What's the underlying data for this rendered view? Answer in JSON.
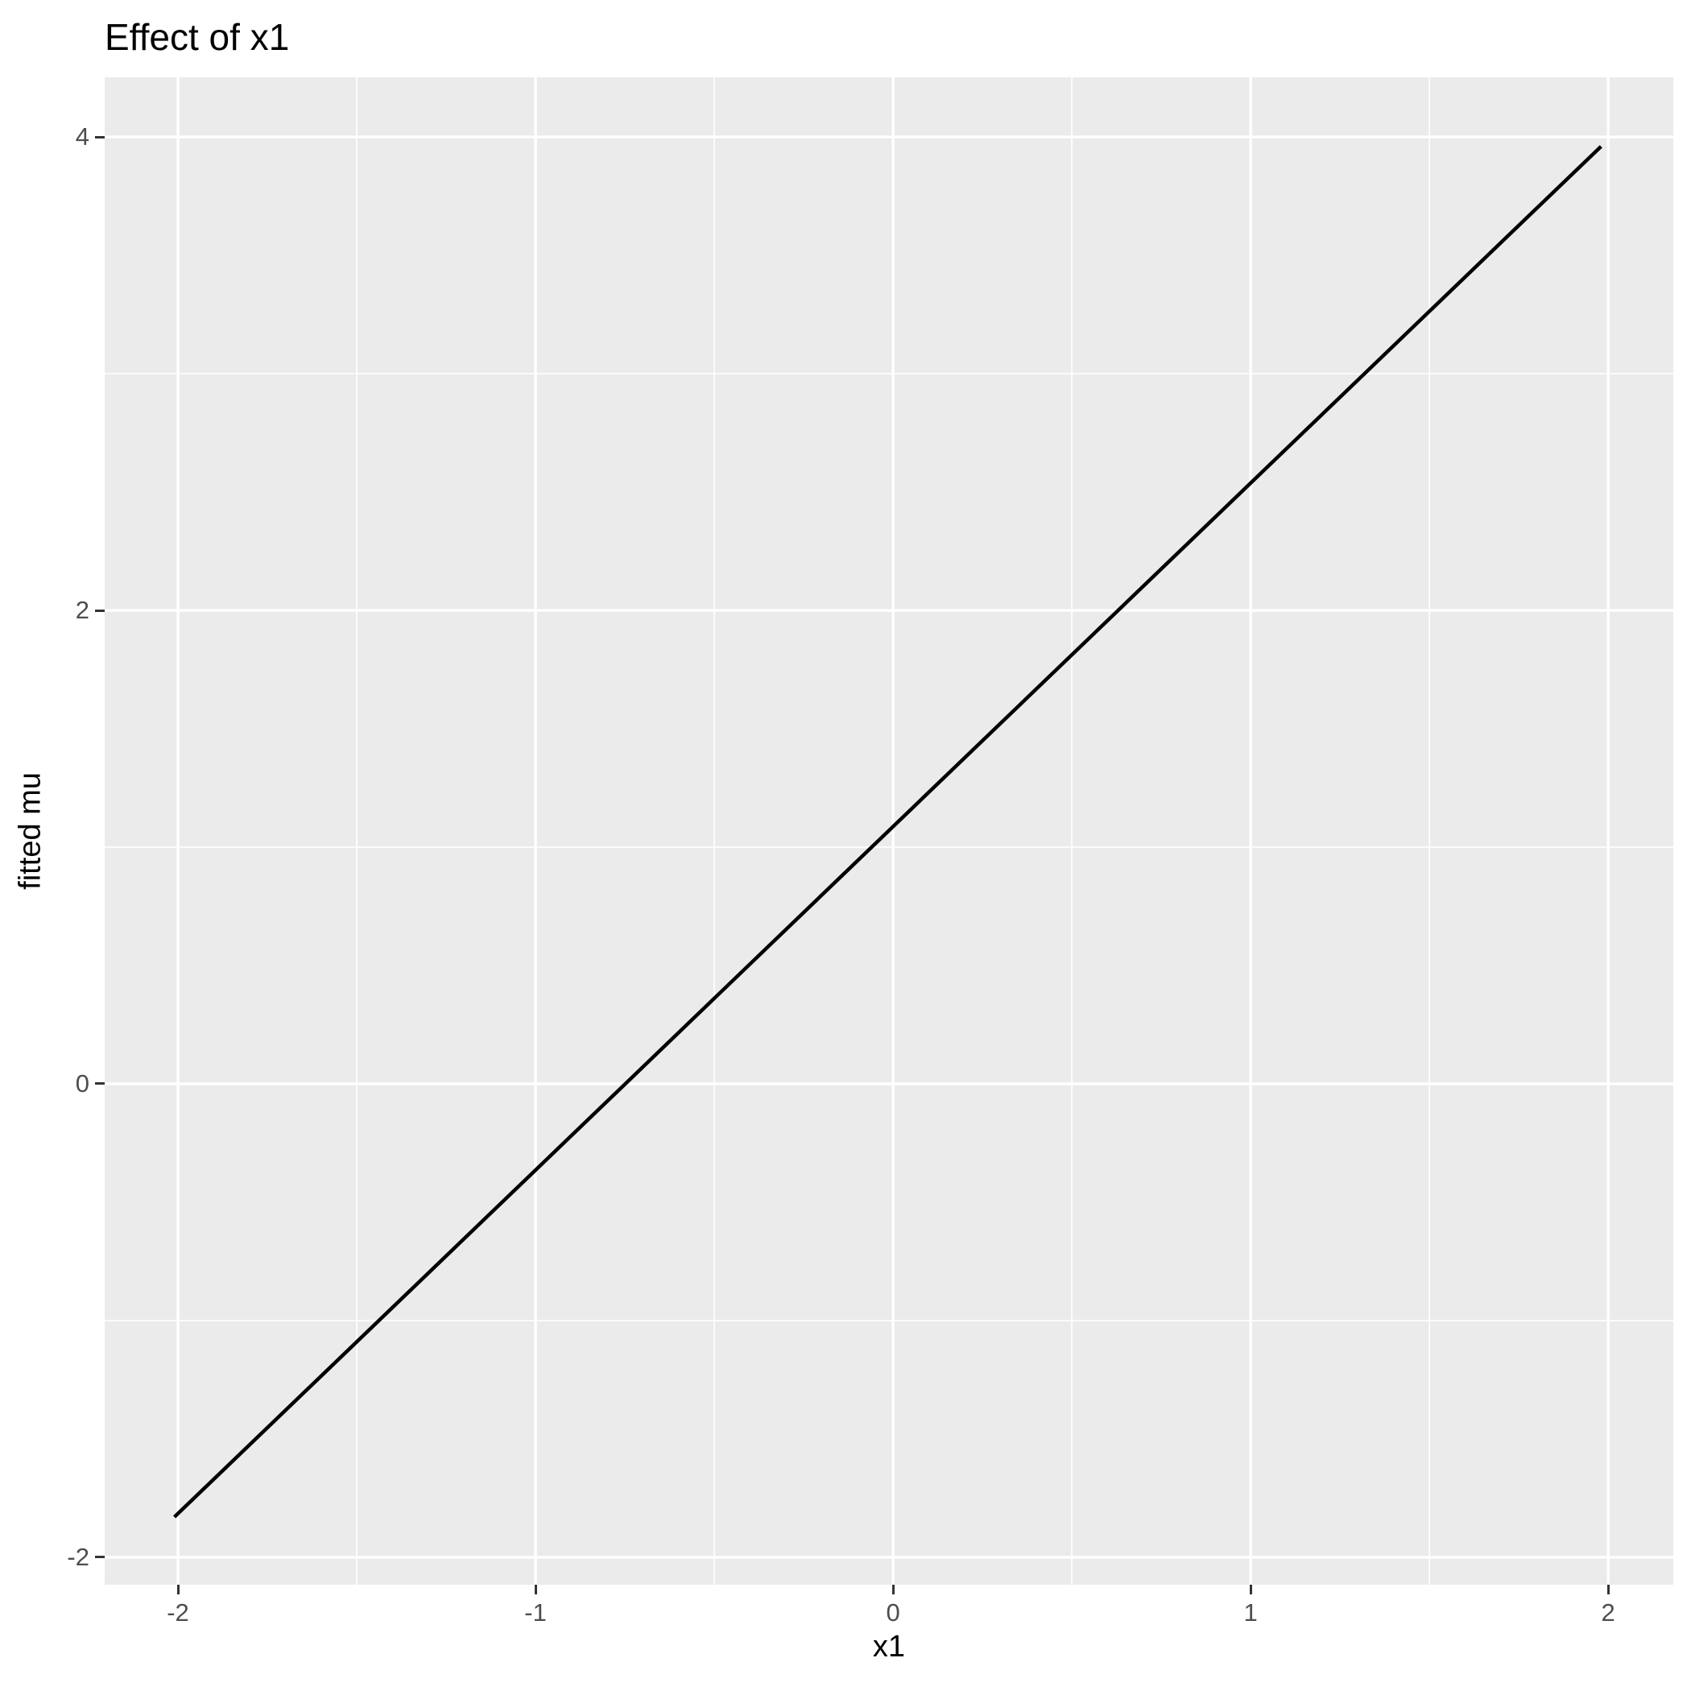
{
  "chart_data": {
    "type": "line",
    "title": "Effect of x1",
    "xlabel": "x1",
    "ylabel": "fitted mu",
    "x_major_ticks": [
      -2,
      -1,
      0,
      1,
      2
    ],
    "x_tick_labels": [
      "-2",
      "-1",
      "0",
      "1",
      "2"
    ],
    "y_major_ticks": [
      -2,
      0,
      2,
      4
    ],
    "y_tick_labels": [
      "-2",
      "0",
      "2",
      "4"
    ],
    "x_minor_ticks": [
      -1.5,
      -0.5,
      0.5,
      1.5
    ],
    "y_minor_ticks": [
      -1,
      1,
      3
    ],
    "xlim": [
      -2.205,
      2.182
    ],
    "ylim": [
      -2.116,
      4.252
    ],
    "grid": true,
    "legend": "none",
    "series": [
      {
        "name": "fitted-line",
        "x": [
          -2.01,
          1.98
        ],
        "y": [
          -1.83,
          3.96
        ],
        "color": "#000000",
        "stroke_width": 4.5
      }
    ],
    "style": {
      "panel_background": "#EBEBEB",
      "grid_major_color": "#FFFFFF",
      "grid_minor_color": "#FFFFFF",
      "grid_major_width": 3.4,
      "grid_minor_width": 1.7,
      "tick_color": "#333333",
      "tick_label_color": "#4D4D4D",
      "title_color": "#000000",
      "axis_title_color": "#000000"
    }
  }
}
